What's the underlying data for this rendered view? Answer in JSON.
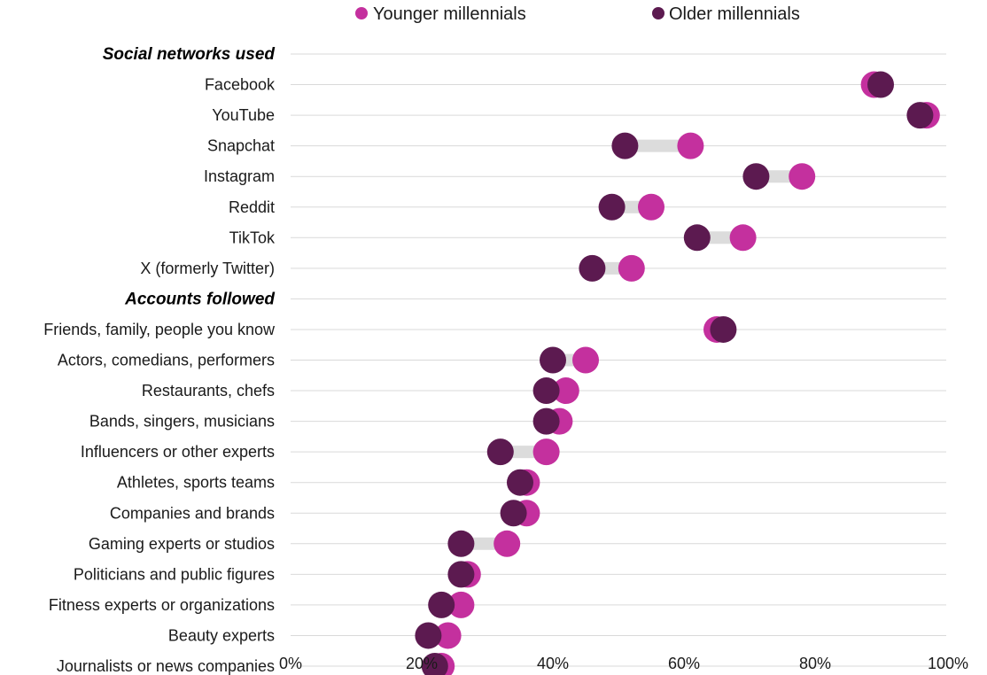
{
  "chart_data": {
    "type": "scatter",
    "subtype": "dumbbell",
    "legend": "top",
    "grid": true,
    "xlim": [
      0,
      100
    ],
    "xticks": [
      "0%",
      "20%",
      "40%",
      "60%",
      "80%",
      "100%"
    ],
    "colors": {
      "younger": "#c4309e",
      "older": "#5c1a50",
      "connector": "#dcdcdc",
      "grid": "#d9d9d9"
    },
    "series": [
      {
        "key": "younger",
        "name": "Younger millennials"
      },
      {
        "key": "older",
        "name": "Older millennials"
      }
    ],
    "rows": [
      {
        "label": "Social networks used",
        "header": true
      },
      {
        "label": "Facebook",
        "younger": 89,
        "older": 90
      },
      {
        "label": "YouTube",
        "younger": 97,
        "older": 96
      },
      {
        "label": "Snapchat",
        "younger": 61,
        "older": 51
      },
      {
        "label": "Instagram",
        "younger": 78,
        "older": 71
      },
      {
        "label": "Reddit",
        "younger": 55,
        "older": 49
      },
      {
        "label": "TikTok",
        "younger": 69,
        "older": 62
      },
      {
        "label": "X (formerly Twitter)",
        "younger": 52,
        "older": 46
      },
      {
        "label": "Accounts followed",
        "header": true
      },
      {
        "label": "Friends, family, people you know",
        "younger": 65,
        "older": 66
      },
      {
        "label": "Actors, comedians, performers",
        "younger": 45,
        "older": 40
      },
      {
        "label": "Restaurants, chefs",
        "younger": 42,
        "older": 39
      },
      {
        "label": "Bands, singers, musicians",
        "younger": 41,
        "older": 39
      },
      {
        "label": "Influencers or other experts",
        "younger": 39,
        "older": 32
      },
      {
        "label": "Athletes, sports teams",
        "younger": 36,
        "older": 35
      },
      {
        "label": "Companies and brands",
        "younger": 36,
        "older": 34
      },
      {
        "label": "Gaming experts or studios",
        "younger": 33,
        "older": 26
      },
      {
        "label": "Politicians and public figures",
        "younger": 27,
        "older": 26
      },
      {
        "label": "Fitness experts or organizations",
        "younger": 26,
        "older": 23
      },
      {
        "label": "Beauty experts",
        "younger": 24,
        "older": 21
      },
      {
        "label": "Journalists or news companies",
        "younger": 23,
        "older": 22
      }
    ]
  }
}
